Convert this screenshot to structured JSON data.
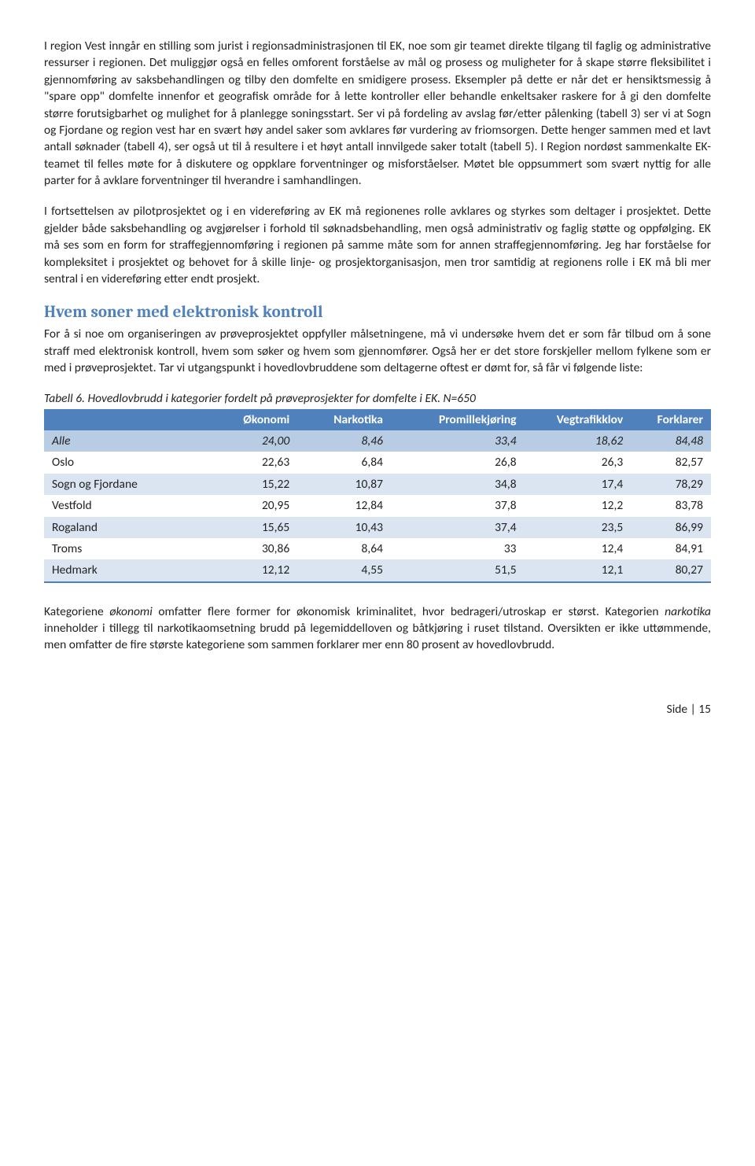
{
  "paragraphs": {
    "p1": "I region Vest inngår en stilling som jurist i regionsadministrasjonen til EK, noe som gir teamet direkte tilgang til faglig og administrative ressurser i regionen. Det muliggjør også en felles omforent forståelse av mål og prosess og muligheter for å skape større fleksibilitet i gjennomføring av saksbehandlingen og tilby den domfelte en smidigere prosess. Eksempler på dette er når det er hensiktsmessig å \"spare opp\" domfelte innenfor et geografisk område for å lette kontroller eller behandle enkeltsaker raskere for å gi den domfelte større forutsigbarhet og mulighet for å planlegge soningsstart. Ser vi på fordeling av avslag før/etter pålenking (tabell 3) ser vi at Sogn og Fjordane og region vest har en svært høy andel saker som avklares før vurdering av friomsorgen. Dette henger sammen med et lavt antall søknader (tabell 4), ser også ut til å resultere i et høyt antall innvilgede saker totalt (tabell 5). I Region nordøst sammenkalte EK-teamet til felles møte for å diskutere og oppklare forventninger og misforståelser. Møtet ble oppsummert som svært nyttig for alle parter for å avklare forventninger til hverandre i samhandlingen.",
    "p2": "I fortsettelsen av pilotprosjektet og i en videreføring av EK må regionenes rolle avklares og styrkes som deltager i prosjektet. Dette gjelder både saksbehandling og avgjørelser i forhold til søknadsbehandling, men også administrativ og faglig støtte og oppfølging. EK må ses som en form for straffegjennomføring i regionen på samme måte som for annen straffegjennomføring. Jeg har forståelse for kompleksitet i prosjektet og behovet for å skille linje- og prosjektorganisasjon, men tror samtidig at regionens rolle i EK må bli mer sentral i en videreføring etter endt prosjekt.",
    "p3": "For å si noe om organiseringen av prøveprosjektet oppfyller målsetningene, må vi undersøke hvem det er som får tilbud om å sone straff med elektronisk kontroll, hvem som søker og hvem som gjennomfører. Også her er det store forskjeller mellom fylkene som er med i prøveprosjektet. Tar vi utgangspunkt i hovedlovbruddene som deltagerne oftest er dømt for, så får vi følgende liste:",
    "p4": "Kategoriene økonomi omfatter flere former for økonomisk kriminalitet, hvor bedrageri/utroskap er størst. Kategorien narkotika inneholder i tillegg til narkotikaomsetning brudd på legemiddelloven og båtkjøring i ruset tilstand. Oversikten er ikke uttømmende, men omfatter de fire største kategoriene som sammen forklarer mer enn 80 prosent av hovedlovbrudd."
  },
  "heading": {
    "h2": "Hvem soner med elektronisk kontroll",
    "color": "#4f81bd"
  },
  "italic_words": {
    "okonomi": "økonomi",
    "narkotika": "narkotika"
  },
  "table": {
    "caption": "Tabell 6. Hovedlovbrudd i kategorier fordelt på prøveprosjekter for domfelte i EK. N=650",
    "columns": [
      "",
      "Økonomi",
      "Narkotika",
      "Promillekjøring",
      "Vegtrafikklov",
      "Forklarer"
    ],
    "rows": [
      [
        "Alle",
        "24,00",
        "8,46",
        "33,4",
        "18,62",
        "84,48"
      ],
      [
        "Oslo",
        "22,63",
        "6,84",
        "26,8",
        "26,3",
        "82,57"
      ],
      [
        "Sogn og Fjordane",
        "15,22",
        "10,87",
        "34,8",
        "17,4",
        "78,29"
      ],
      [
        "Vestfold",
        "20,95",
        "12,84",
        "37,8",
        "12,2",
        "83,78"
      ],
      [
        "Rogaland",
        "15,65",
        "10,43",
        "37,4",
        "23,5",
        "86,99"
      ],
      [
        "Troms",
        "30,86",
        "8,64",
        "33",
        "12,4",
        "84,91"
      ],
      [
        "Hedmark",
        "12,12",
        "4,55",
        "51,5",
        "12,1",
        "80,27"
      ]
    ],
    "colors": {
      "header_bg": "#4f81bd",
      "row_first_italic_bg": "#b8cce4",
      "row_band_light": "#dbe5f1",
      "row_band_white": "#ffffff",
      "border_bottom": "#4f81bd"
    },
    "col_widths": [
      "24%",
      "14%",
      "14%",
      "20%",
      "16%",
      "12%"
    ]
  },
  "footer": "Side | 15"
}
